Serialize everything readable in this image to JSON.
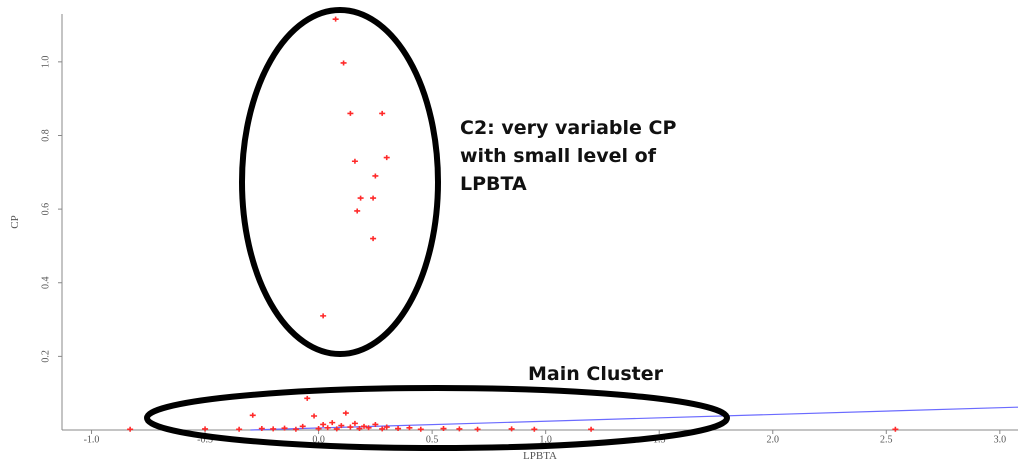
{
  "chart_data": {
    "type": "scatter",
    "x_label": "LPBTA",
    "y_label": "CP",
    "xlim": [
      -1.13,
      3.08
    ],
    "ylim": [
      0,
      1.13
    ],
    "xticks": [
      {
        "value": -1,
        "label": "-1.0"
      },
      -0.5,
      {
        "value": 0,
        "label": "0.0"
      },
      0.5,
      {
        "value": 1,
        "label": "1.0"
      },
      1.5,
      {
        "value": 2,
        "label": "2.0"
      },
      2.5,
      {
        "value": 3,
        "label": "3.0"
      }
    ],
    "yticks": [
      0.2,
      0.4,
      0.6,
      0.8,
      {
        "value": 1,
        "label": "1.0"
      }
    ],
    "series": [
      {
        "color": "#ff2a2a",
        "x": [
          0.075,
          0.11,
          0.14,
          0.28,
          0.16,
          0.3,
          0.25,
          0.185,
          0.24,
          0.17,
          0.24,
          0.02,
          -0.83,
          -0.5,
          -0.35,
          -0.29,
          -0.25,
          -0.2,
          -0.15,
          -0.1,
          -0.07,
          -0.05,
          -0.02,
          0.0,
          0.02,
          0.04,
          0.06,
          0.08,
          0.1,
          0.12,
          0.14,
          0.16,
          0.18,
          0.2,
          0.22,
          0.25,
          0.28,
          0.3,
          0.35,
          0.4,
          0.45,
          0.55,
          0.62,
          0.7,
          0.85,
          0.95,
          1.2,
          2.54
        ],
        "values": [
          1.116,
          0.997,
          0.86,
          0.86,
          0.73,
          0.74,
          0.69,
          0.63,
          0.63,
          0.595,
          0.52,
          0.31,
          0.002,
          0.003,
          0.002,
          0.04,
          0.004,
          0.003,
          0.005,
          0.002,
          0.01,
          0.086,
          0.038,
          0.004,
          0.015,
          0.006,
          0.02,
          0.003,
          0.012,
          0.046,
          0.008,
          0.018,
          0.004,
          0.01,
          0.006,
          0.015,
          0.003,
          0.008,
          0.004,
          0.006,
          0.002,
          0.004,
          0.003,
          0.002,
          0.003,
          0.002,
          0.002,
          0.002
        ]
      }
    ],
    "trend_line": {
      "color": "#6b6bff",
      "x": [
        -0.3,
        3.08
      ],
      "values": [
        0,
        0.062
      ]
    },
    "annotations": [
      {
        "text": [
          "C2: very variable CP",
          "with small level of",
          "LPBTA"
        ]
      },
      {
        "text": [
          "Main Cluster"
        ]
      }
    ]
  }
}
